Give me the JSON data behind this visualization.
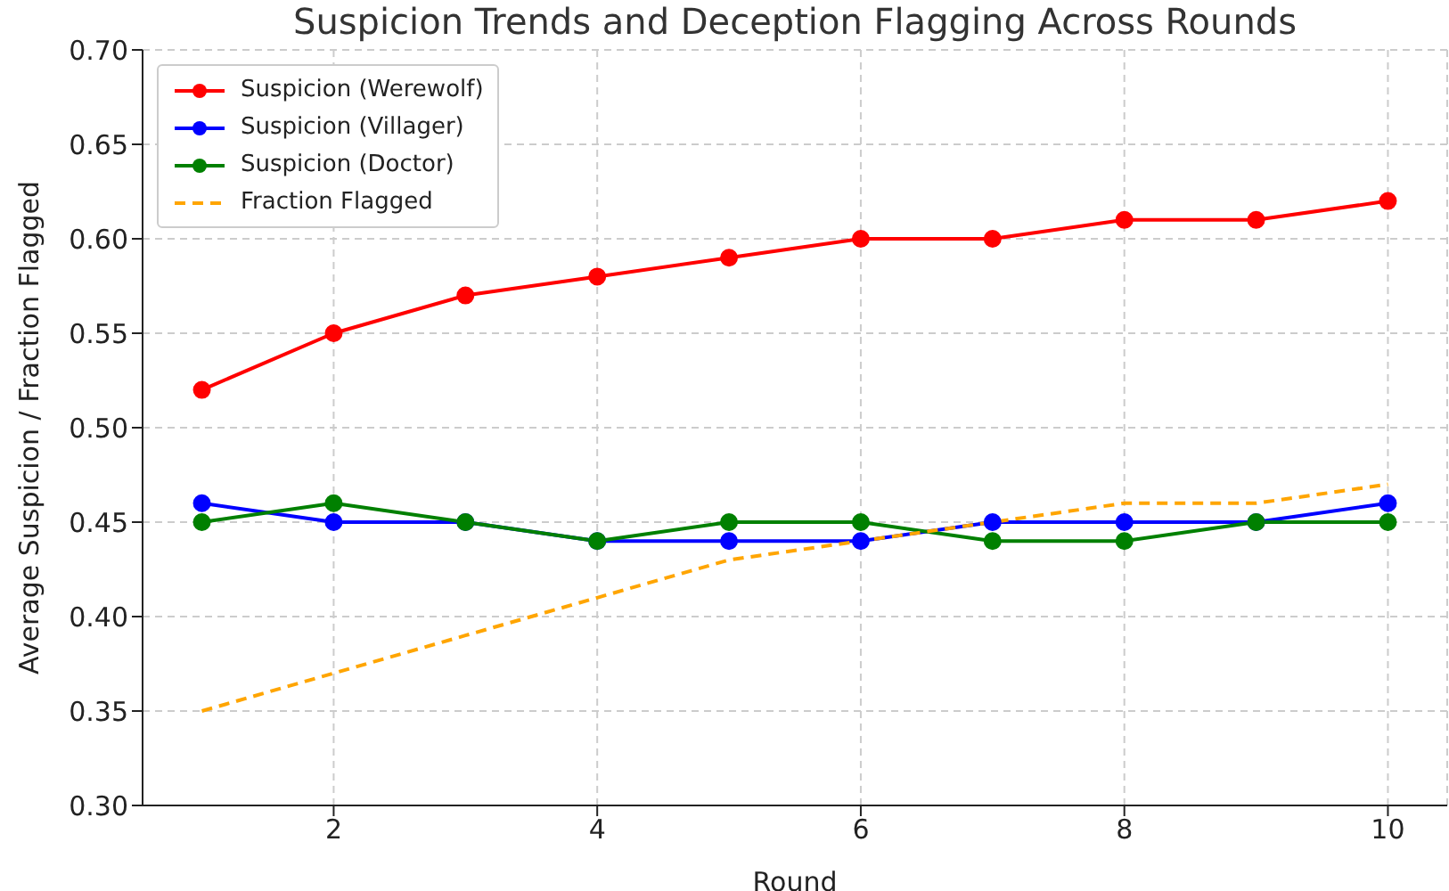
{
  "chart_data": {
    "type": "line",
    "title": "Suspicion Trends and Deception Flagging Across Rounds",
    "xlabel": "Round",
    "ylabel": "Average Suspicion / Fraction Flagged",
    "x": [
      1,
      2,
      3,
      4,
      5,
      6,
      7,
      8,
      9,
      10
    ],
    "series": [
      {
        "name": "Suspicion (Werewolf)",
        "color": "#ff0000",
        "marker": "circle",
        "line_style": "solid",
        "values": [
          0.52,
          0.55,
          0.57,
          0.58,
          0.59,
          0.6,
          0.6,
          0.61,
          0.61,
          0.62
        ]
      },
      {
        "name": "Suspicion (Villager)",
        "color": "#0000ff",
        "marker": "circle",
        "line_style": "solid",
        "values": [
          0.46,
          0.45,
          0.45,
          0.44,
          0.44,
          0.44,
          0.45,
          0.45,
          0.45,
          0.46
        ]
      },
      {
        "name": "Suspicion (Doctor)",
        "color": "#008000",
        "marker": "circle",
        "line_style": "solid",
        "values": [
          0.45,
          0.46,
          0.45,
          0.44,
          0.45,
          0.45,
          0.44,
          0.44,
          0.45,
          0.45
        ]
      },
      {
        "name": "Fraction Flagged",
        "color": "#ffa500",
        "marker": "none",
        "line_style": "dashed",
        "values": [
          0.35,
          0.37,
          0.39,
          0.41,
          0.43,
          0.44,
          0.45,
          0.46,
          0.46,
          0.47
        ]
      }
    ],
    "xlim": [
      0.55,
      10.45
    ],
    "xticks": [
      2,
      4,
      6,
      8,
      10
    ],
    "ylim": [
      0.3,
      0.7
    ],
    "yticks": [
      {
        "value": 0.3,
        "label": "0.30"
      },
      {
        "value": 0.35,
        "label": "0.35"
      },
      {
        "value": 0.4,
        "label": "0.40"
      },
      {
        "value": 0.45,
        "label": "0.45"
      },
      {
        "value": 0.5,
        "label": "0.50"
      },
      {
        "value": 0.55,
        "label": "0.55"
      },
      {
        "value": 0.6,
        "label": "0.60"
      },
      {
        "value": 0.65,
        "label": "0.65"
      },
      {
        "value": 0.7,
        "label": "0.70"
      }
    ],
    "grid": true,
    "legend": "top left"
  }
}
